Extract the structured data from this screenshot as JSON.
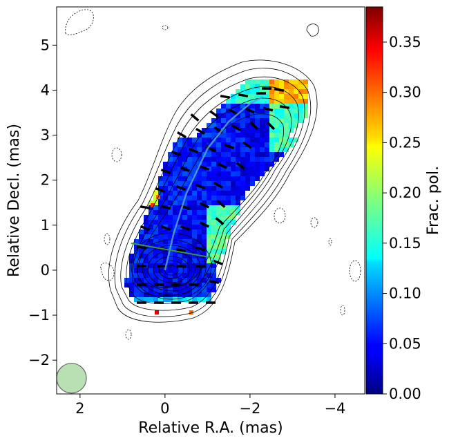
{
  "chart_data": {
    "type": "heatmap",
    "title": "",
    "xlabel": "Relative R.A. (mas)",
    "ylabel": "Relative Decl. (mas)",
    "xlim": [
      2.55,
      -4.7
    ],
    "ylim": [
      -2.75,
      5.85
    ],
    "x_inverted": true,
    "xticks": [
      2,
      0,
      -2,
      -4
    ],
    "xtick_labels": [
      "2",
      "0",
      "−2",
      "−4"
    ],
    "yticks": [
      -2,
      -1,
      0,
      1,
      2,
      3,
      4,
      5
    ],
    "ytick_labels": [
      "−2",
      "−1",
      "0",
      "1",
      "2",
      "3",
      "4",
      "5"
    ],
    "colorbar": {
      "label": "Frac. pol.",
      "colormap": "jet",
      "range": [
        0.0,
        0.385
      ],
      "ticks": [
        0.0,
        0.05,
        0.1,
        0.15,
        0.2,
        0.25,
        0.3,
        0.35
      ],
      "tick_labels": [
        "0.00",
        "0.05",
        "0.10",
        "0.15",
        "0.20",
        "0.25",
        "0.30",
        "0.35"
      ]
    },
    "jet_ridge_line": {
      "color": "#5aa0d0",
      "points": [
        [
          0,
          0
        ],
        [
          -0.2,
          0.8
        ],
        [
          -0.5,
          1.7
        ],
        [
          -1.0,
          2.7
        ],
        [
          -1.5,
          3.3
        ],
        [
          -2.0,
          3.7
        ],
        [
          -2.3,
          3.85
        ]
      ]
    },
    "transverse_line": {
      "color": "#3a9a3a",
      "points": [
        [
          0.8,
          0.6
        ],
        [
          -1.1,
          0.28
        ]
      ]
    },
    "beam": {
      "x": 2.2,
      "y": -2.4,
      "diameter": 0.7,
      "color": "#a8d8a0"
    },
    "grid": false,
    "legend": "none"
  }
}
